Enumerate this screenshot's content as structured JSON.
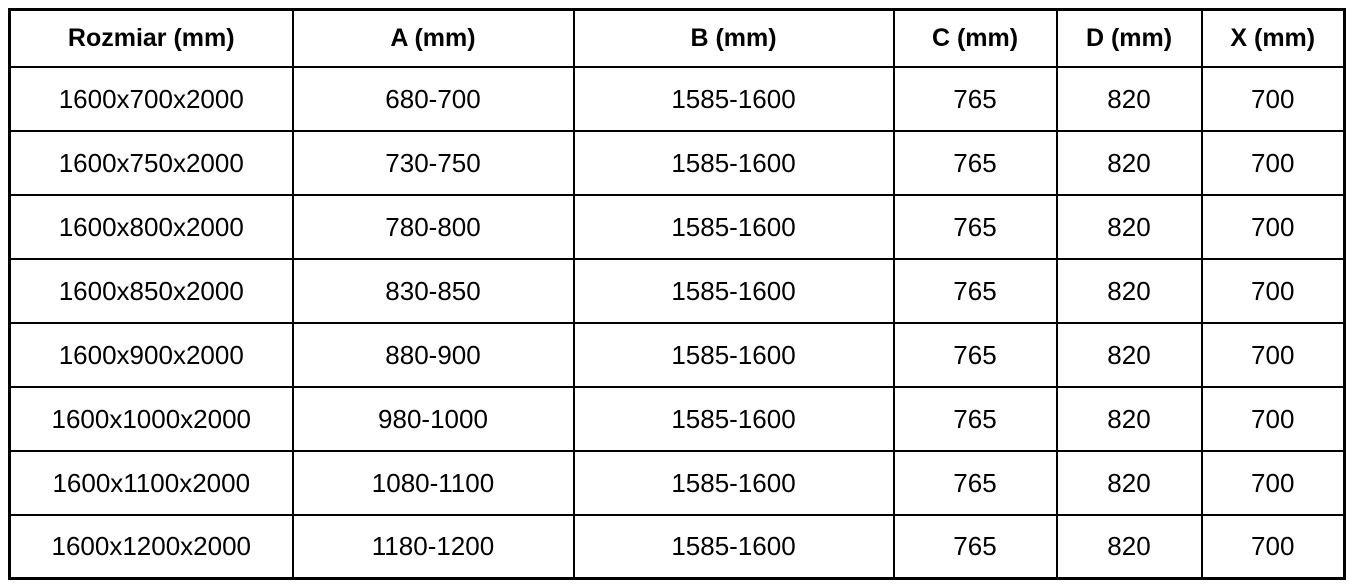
{
  "page": {
    "background_color": "#ffffff",
    "border_color": "#000000",
    "text_color": "#000000"
  },
  "table": {
    "title": "size-specification-table",
    "header": [
      "Rozmiar (mm)",
      "A (mm)",
      "B (mm)",
      "C (mm)",
      "D (mm)",
      "X (mm)"
    ],
    "header_keys": [
      "rozmiar",
      "a",
      "b",
      "c",
      "d",
      "x"
    ],
    "rows": [
      [
        "1600x700x2000",
        "680-700",
        "1585-1600",
        "765",
        "820",
        "700"
      ],
      [
        "1600x750x2000",
        "730-750",
        "1585-1600",
        "765",
        "820",
        "700"
      ],
      [
        "1600x800x2000",
        "780-800",
        "1585-1600",
        "765",
        "820",
        "700"
      ],
      [
        "1600x850x2000",
        "830-850",
        "1585-1600",
        "765",
        "820",
        "700"
      ],
      [
        "1600x900x2000",
        "880-900",
        "1585-1600",
        "765",
        "820",
        "700"
      ],
      [
        "1600x1000x2000",
        "980-1000",
        "1585-1600",
        "765",
        "820",
        "700"
      ],
      [
        "1600x1100x2000",
        "1080-1100",
        "1585-1600",
        "765",
        "820",
        "700"
      ],
      [
        "1600x1200x2000",
        "1180-1200",
        "1585-1600",
        "765",
        "820",
        "700"
      ]
    ]
  }
}
